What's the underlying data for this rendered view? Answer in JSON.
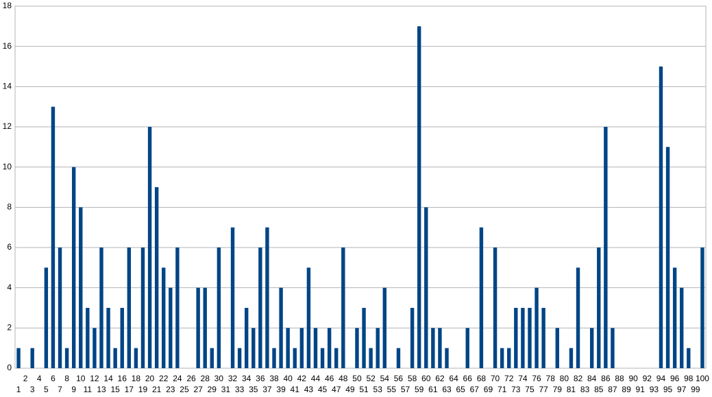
{
  "chart_data": {
    "type": "bar",
    "categories": [
      "1",
      "2",
      "3",
      "4",
      "5",
      "6",
      "7",
      "8",
      "9",
      "10",
      "11",
      "12",
      "13",
      "14",
      "15",
      "16",
      "17",
      "18",
      "19",
      "20",
      "21",
      "22",
      "23",
      "24",
      "25",
      "26",
      "27",
      "28",
      "29",
      "30",
      "31",
      "32",
      "33",
      "34",
      "35",
      "36",
      "37",
      "38",
      "39",
      "40",
      "41",
      "42",
      "43",
      "44",
      "45",
      "46",
      "47",
      "48",
      "49",
      "50",
      "51",
      "52",
      "53",
      "54",
      "55",
      "56",
      "57",
      "58",
      "59",
      "60",
      "61",
      "62",
      "63",
      "64",
      "65",
      "66",
      "67",
      "68",
      "69",
      "70",
      "71",
      "72",
      "73",
      "74",
      "75",
      "76",
      "77",
      "78",
      "79",
      "80",
      "81",
      "82",
      "83",
      "84",
      "85",
      "86",
      "87",
      "88",
      "89",
      "90",
      "91",
      "92",
      "93",
      "94",
      "95",
      "96",
      "97",
      "98",
      "99",
      "100"
    ],
    "values": [
      1,
      0,
      1,
      0,
      5,
      13,
      6,
      1,
      10,
      8,
      3,
      2,
      6,
      3,
      1,
      3,
      6,
      1,
      6,
      12,
      9,
      5,
      4,
      6,
      0,
      0,
      4,
      4,
      1,
      6,
      0,
      7,
      1,
      3,
      2,
      6,
      7,
      1,
      4,
      2,
      1,
      2,
      5,
      2,
      1,
      2,
      1,
      6,
      0,
      2,
      3,
      1,
      2,
      4,
      0,
      1,
      0,
      3,
      17,
      8,
      2,
      2,
      1,
      0,
      0,
      2,
      0,
      7,
      0,
      6,
      1,
      1,
      3,
      3,
      3,
      4,
      3,
      0,
      2,
      0,
      1,
      5,
      0,
      2,
      6,
      12,
      2,
      0,
      0,
      0,
      0,
      0,
      0,
      15,
      11,
      5,
      4,
      1,
      0,
      6
    ],
    "color": "#004586",
    "ylim": [
      0,
      18
    ],
    "yticks": [
      0,
      2,
      4,
      6,
      8,
      10,
      12,
      14,
      16,
      18
    ],
    "grid": true
  }
}
